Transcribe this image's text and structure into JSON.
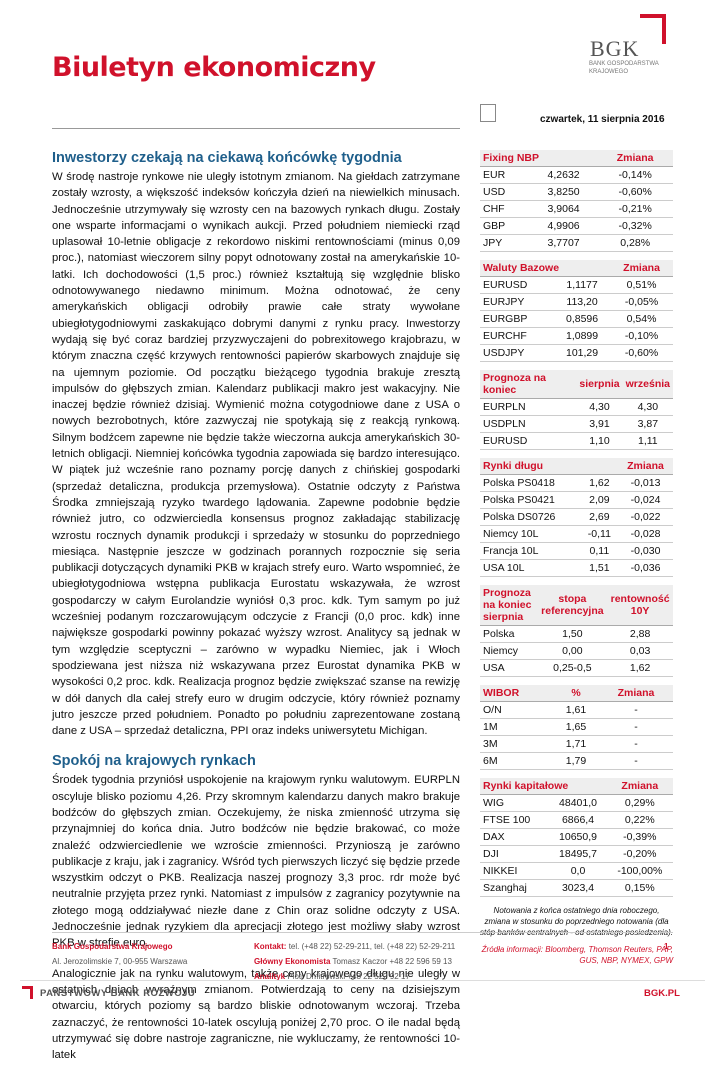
{
  "header": {
    "title": "Biuletyn ekonomiczny",
    "logo": "BGK",
    "logo_sub": "BANK GOSPODARSTWA KRAJOWEGO",
    "date": "czwartek, 11 sierpnia 2016"
  },
  "article": {
    "sections": [
      {
        "heading": "Inwestorzy czekają na ciekawą końcówkę tygodnia",
        "paragraphs": [
          "W środę nastroje rynkowe nie uległy istotnym zmianom. Na giełdach zatrzymane zostały wzrosty, a większość indeksów kończyła dzień na niewielkich minusach. Jednocześnie utrzymywały się wzrosty cen na bazowych rynkach długu. Zostały one wsparte informacjami o wynikach aukcji. Przed południem niemiecki rząd uplasował 10-letnie obligacje z rekordowo niskimi rentownościami (minus 0,09 proc.), natomiast wieczorem silny popyt odnotowany został na amerykańskie 10-latki. Ich dochodowości (1,5 proc.) również kształtują się względnie blisko odnotowywanego niedawno minimum. Można odnotować, że ceny amerykańskich obligacji odrobiły prawie całe straty wywołane ubiegłotygodniowymi zaskakująco dobrymi danymi z rynku pracy. Inwestorzy wydają się być coraz bardziej przyzwyczajeni do pobrexitowego krajobrazu, w którym znaczna część krzywych rentowności papierów skarbowych znajduje się na ujemnym poziomie. Od początku bieżącego tygodnia brakuje zresztą impulsów do głębszych zmian. Kalendarz publikacji makro jest wakacyjny. Nie inaczej będzie również dzisiaj. Wymienić można cotygodniowe dane z USA o nowych bezrobotnych, które zazwyczaj nie spotykają się z reakcją rynkową. Silnym bodźcem zapewne nie będzie także wieczorna aukcja amerykańskich 30-letnich obligacji. Niemniej końcówka tygodnia zapowiada się bardzo interesująco. W piątek już wcześnie rano poznamy porcję danych z chińskiej gospodarki (sprzedaż detaliczna, produkcja przemysłowa). Ostatnie odczyty z Państwa Środka zmniejszają ryzyko twardego lądowania. Zapewne podobnie będzie również jutro, co odzwierciedla konsensus prognoz zakładając stabilizację wzrostu rocznych dynamik produkcji i sprzedaży w stosunku do poprzedniego miesiąca. Następnie jeszcze w godzinach porannych rozpocznie się seria publikacji dotyczących dynamiki PKB w krajach strefy euro. Warto wspomnieć, że ubiegłotygodniowa wstępna publikacja Eurostatu wskazywała, że wzrost gospodarczy w całym Eurolandzie wyniósł 0,3 proc. kdk. Tym samym po już wcześniej podanym rozczarowującym odczycie z Francji (0,0 proc. kdk) inne największe gospodarki powinny pokazać wyższy wzrost. Analitycy są jednak w tym względzie sceptyczni – zarówno w wypadku Niemiec, jak i Włoch spodziewana jest niższa niż wskazywana przez Eurostat dynamika PKB w wysokości 0,2 proc. kdk. Realizacja prognoz będzie zwiększać szanse na rewizję w dół danych dla całej strefy euro w drugim odczycie, który również poznamy jutro jeszcze przed południem. Ponadto po południu zaprezentowane zostaną dane z USA – sprzedaż detaliczna, PPI oraz indeks uniwersytetu Michigan."
        ]
      },
      {
        "heading": "Spokój na krajowych rynkach",
        "paragraphs": [
          "Środek tygodnia przyniósł uspokojenie na krajowym rynku walutowym. EURPLN oscyluje blisko poziomu 4,26. Przy skromnym kalendarzu danych makro brakuje bodźców do głębszych zmian. Oczekujemy, że niska zmienność utrzyma się przynajmniej do końca dnia. Jutro bodźców nie będzie brakować, co może znaleźć odzwierciedlenie we wzroście zmienności. Przynioszą je zarówno publikacje z kraju, jak i zagranicy. Wśród tych pierwszych liczyć się będzie przede wszystkim odczyt o PKB. Realizacja naszej prognozy 3,3 proc. rdr może być neutralnie przyjęta przez rynki. Natomiast z impulsów z zagranicy pozytywnie na złotego mogą oddziaływać niezłe dane z Chin oraz solidne odczyty z USA. Jednocześnie jednak ryzykiem dla aprecjacji złotego jest możliwy słaby wzrost PKB w strefie euro.",
          "Analogicznie jak na rynku walutowym, także ceny krajowego długu nie uległy w ostatnich dniach wyraźnym zmianom. Potwierdzają to ceny na dzisiejszym otwarciu, których poziomy są bardzo bliskie odnotowanym wczoraj. Trzeba zaznaczyć, że rentowności 10-latek oscylują poniżej 2,70 proc. O ile nadal będą utrzymywać się dobre nastroje zagraniczne, nie wykluczamy, że rentowności 10-latek"
        ]
      }
    ]
  },
  "sidebar": {
    "tables": [
      {
        "title": "Fixing NBP",
        "columns": [
          "Zmiana"
        ],
        "rows": [
          [
            "EUR",
            "4,2632",
            "-0,14%"
          ],
          [
            "USD",
            "3,8250",
            "-0,60%"
          ],
          [
            "CHF",
            "3,9064",
            "-0,21%"
          ],
          [
            "GBP",
            "4,9906",
            "-0,32%"
          ],
          [
            "JPY",
            "3,7707",
            "0,28%"
          ]
        ]
      },
      {
        "title": "Waluty Bazowe",
        "columns": [
          "Zmiana"
        ],
        "rows": [
          [
            "EURUSD",
            "1,1177",
            "0,51%"
          ],
          [
            "EURJPY",
            "113,20",
            "-0,05%"
          ],
          [
            "EURGBP",
            "0,8596",
            "0,54%"
          ],
          [
            "EURCHF",
            "1,0899",
            "-0,10%"
          ],
          [
            "USDJPY",
            "101,29",
            "-0,60%"
          ]
        ]
      },
      {
        "title": "Prognoza na koniec",
        "columns": [
          "sierpnia",
          "września"
        ],
        "rows": [
          [
            "EURPLN",
            "4,30",
            "4,30"
          ],
          [
            "USDPLN",
            "3,91",
            "3,87"
          ],
          [
            "EURUSD",
            "1,10",
            "1,11"
          ]
        ]
      },
      {
        "title": "Rynki długu",
        "columns": [
          "Zmiana"
        ],
        "rows": [
          [
            "Polska PS0418",
            "1,62",
            "-0,013"
          ],
          [
            "Polska PS0421",
            "2,09",
            "-0,024"
          ],
          [
            "Polska DS0726",
            "2,69",
            "-0,022"
          ],
          [
            "Niemcy 10L",
            "-0,11",
            "-0,028"
          ],
          [
            "Francja 10L",
            "0,11",
            "-0,030"
          ],
          [
            "USA 10L",
            "1,51",
            "-0,036"
          ]
        ]
      },
      {
        "title": "Prognoza na koniec sierpnia",
        "columns": [
          "stopa referencyjna",
          "rentowność 10Y"
        ],
        "rows": [
          [
            "Polska",
            "1,50",
            "2,88"
          ],
          [
            "Niemcy",
            "0,00",
            "0,03"
          ],
          [
            "USA",
            "0,25-0,5",
            "1,62"
          ]
        ]
      },
      {
        "title": "WIBOR",
        "columns": [
          "%",
          "Zmiana"
        ],
        "rows": [
          [
            "O/N",
            "1,61",
            "-"
          ],
          [
            "1M",
            "1,65",
            "-"
          ],
          [
            "3M",
            "1,71",
            "-"
          ],
          [
            "6M",
            "1,79",
            "-"
          ]
        ]
      },
      {
        "title": "Rynki kapitałowe",
        "columns": [
          "Zmiana"
        ],
        "rows": [
          [
            "WIG",
            "48401,0",
            "0,29%"
          ],
          [
            "FTSE 100",
            "6866,4",
            "0,22%"
          ],
          [
            "DAX",
            "10650,9",
            "-0,39%"
          ],
          [
            "DJI",
            "18495,7",
            "-0,20%"
          ],
          [
            "NIKKEI",
            "0,0",
            "-100,00%"
          ],
          [
            "Szanghaj",
            "3023,4",
            "0,15%"
          ]
        ]
      }
    ],
    "note": "Notowania z końca ostatniego dnia roboczego, zmiana w stosunku do poprzedniego notowania (dla stóp banków centralnych - od ostatniego posiedzenia).",
    "sources": "Źródła informacji: Bloomberg, Thomson Reuters, PAP, GUS, NBP, NYMEX, GPW"
  },
  "footer": {
    "bank": "Bank Gospodarstwa Krajowego",
    "address": "Al. Jerozolimskie 7, 00-955 Warszawa",
    "contact_label": "Kontakt:",
    "contact": "tel. (+48 22) 52-29-211, tel. (+48 22) 52-29-211",
    "economist_label": "Główny Ekonomista",
    "economist": "Tomasz Kaczor +48 22 596 59 13",
    "analyst_label": "Analityk",
    "analyst": "Piotr Dmitrowski +48 22 522 92 17",
    "page": "1",
    "slogan": "PAŃSTWOWY BANK ROZWOJU",
    "url": "BGK.PL"
  }
}
